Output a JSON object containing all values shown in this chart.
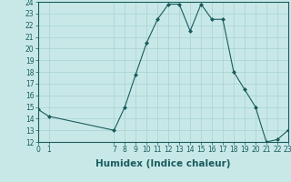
{
  "x": [
    0,
    1,
    7,
    8,
    9,
    10,
    11,
    12,
    13,
    14,
    15,
    16,
    17,
    18,
    19,
    20,
    21,
    22,
    23
  ],
  "y": [
    14.8,
    14.2,
    13.0,
    15.0,
    17.8,
    20.5,
    22.5,
    23.8,
    23.8,
    21.5,
    23.8,
    22.5,
    22.5,
    18.0,
    16.5,
    15.0,
    12.0,
    12.2,
    13.0
  ],
  "line_color": "#1a5c5c",
  "marker_color": "#1a5c5c",
  "bg_color": "#c8e8e8",
  "grid_color": "#a0cccc",
  "xlabel": "Humidex (Indice chaleur)",
  "xlim": [
    0,
    23
  ],
  "ylim": [
    12,
    24
  ],
  "yticks": [
    12,
    13,
    14,
    15,
    16,
    17,
    18,
    19,
    20,
    21,
    22,
    23,
    24
  ],
  "xticks": [
    0,
    1,
    7,
    8,
    9,
    10,
    11,
    12,
    13,
    14,
    15,
    16,
    17,
    18,
    19,
    20,
    21,
    22,
    23
  ],
  "xlabel_fontsize": 7.5,
  "tick_fontsize": 5.5
}
